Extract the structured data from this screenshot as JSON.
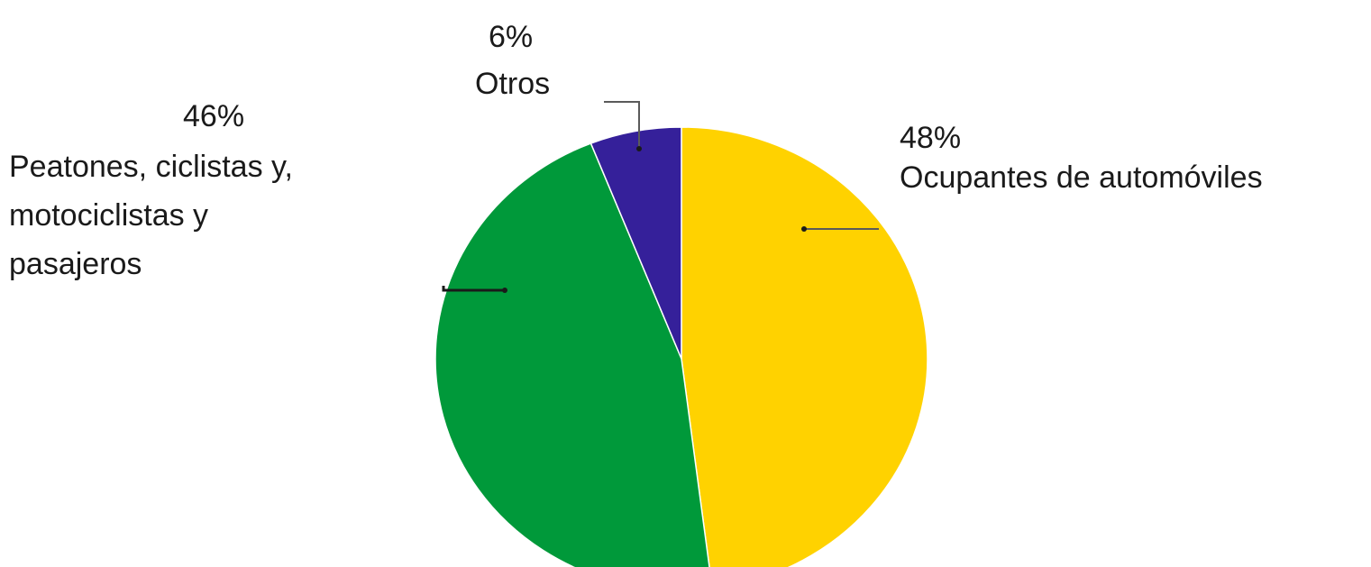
{
  "chart_data": {
    "type": "pie",
    "slices": [
      {
        "value": 48,
        "value_label": "48%",
        "label": "Ocupantes de automóviles",
        "color": "#FFD200"
      },
      {
        "value": 46,
        "value_label": "46%",
        "label_lines": [
          "Peatones, ciclistas y,",
          "motociclistas y",
          "pasajeros"
        ],
        "color": "#00993A"
      },
      {
        "value": 6,
        "value_label": "6%",
        "label": "Otros",
        "color": "#35209A"
      }
    ],
    "start_angle_deg": 0,
    "direction": "clockwise",
    "legend": "none",
    "labels": "outside-with-leader-lines"
  }
}
